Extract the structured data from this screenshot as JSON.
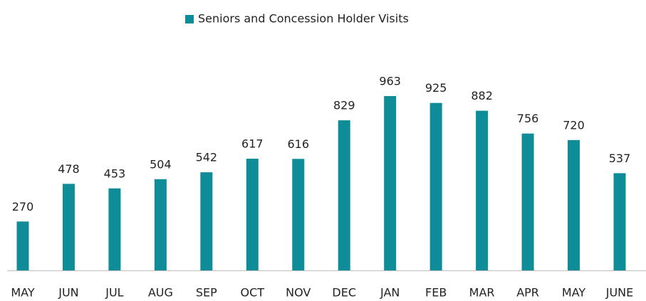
{
  "chart_data": {
    "type": "bar",
    "categories": [
      "MAY",
      "JUN",
      "JUL",
      "AUG",
      "SEP",
      "OCT",
      "NOV",
      "DEC",
      "JAN",
      "FEB",
      "MAR",
      "APR",
      "MAY",
      "JUNE"
    ],
    "series": [
      {
        "name": "Seniors and Concession Holder Visits",
        "color": "#0e8c97",
        "values": [
          270,
          478,
          453,
          504,
          542,
          617,
          616,
          829,
          963,
          925,
          882,
          756,
          720,
          537
        ]
      }
    ],
    "legend": "top"
  }
}
